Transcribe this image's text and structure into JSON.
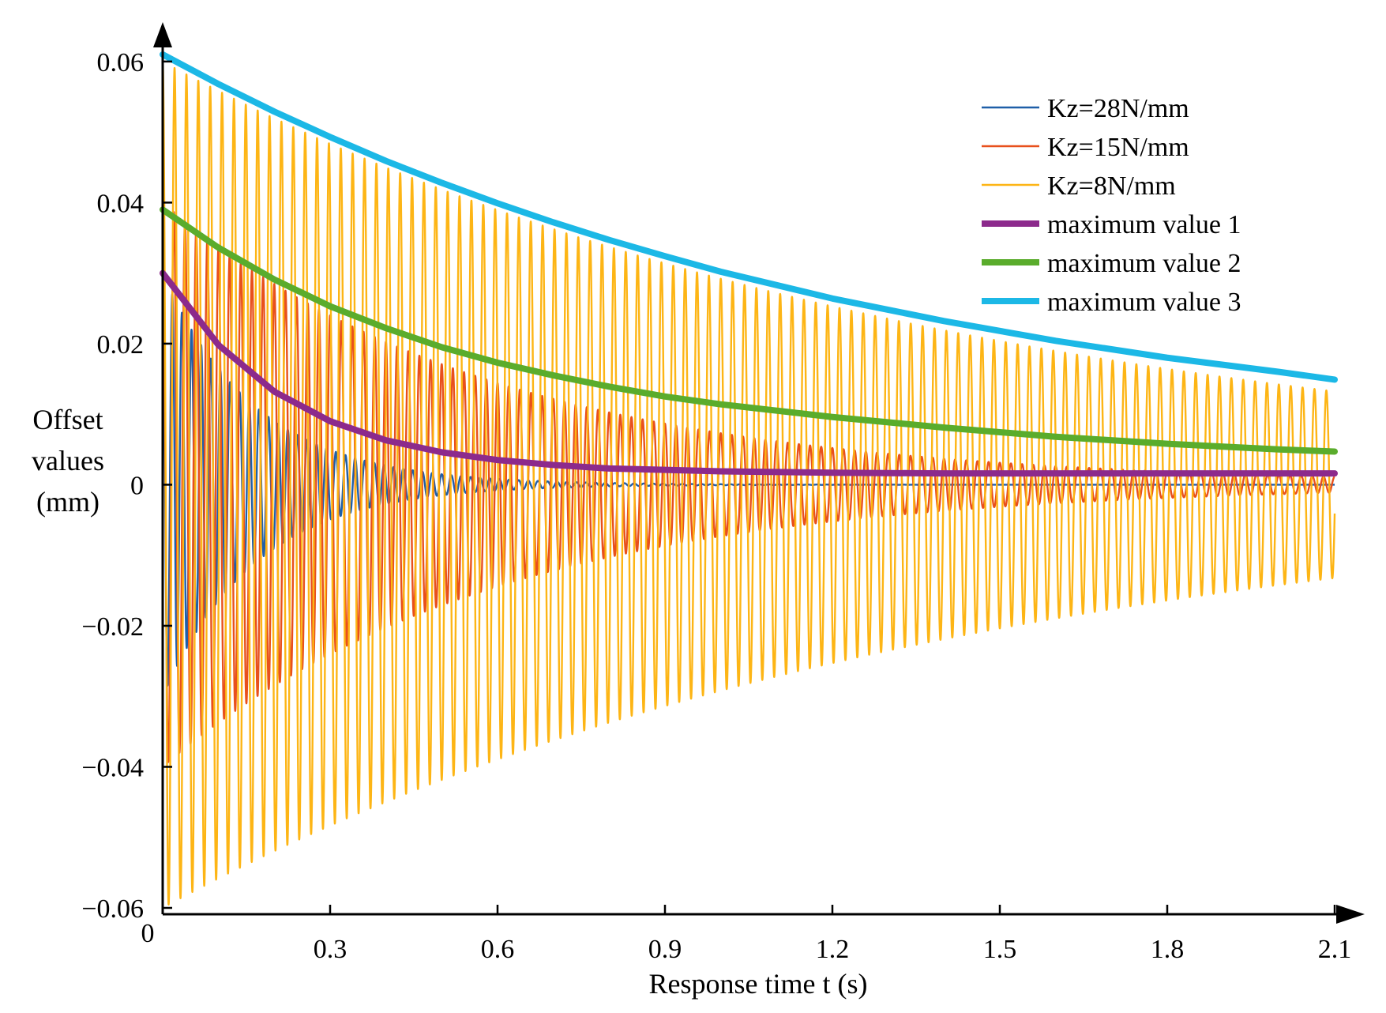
{
  "chart_data": {
    "type": "line",
    "title": "",
    "xlabel": "Response time t (s)",
    "ylabel_lines": [
      "Offset",
      "values",
      "(mm)"
    ],
    "xlim": [
      0,
      2.1
    ],
    "ylim": [
      -0.06,
      0.062
    ],
    "x_ticks": [
      0.3,
      0.6,
      0.9,
      1.2,
      1.5,
      1.8,
      2.1
    ],
    "x_tick_labels": [
      "0.3",
      "0.6",
      "0.9",
      "1.2",
      "1.5",
      "1.8",
      "2.1"
    ],
    "x_origin_label": "0",
    "y_ticks": [
      0.06,
      0.04,
      0.02,
      0,
      -0.02,
      -0.04,
      -0.06
    ],
    "y_tick_labels": [
      "0.06",
      "0.04",
      "0.02",
      "0",
      "−0.02",
      "−0.04",
      "−0.06"
    ],
    "grid": false,
    "legend_position": "top-right",
    "series": [
      {
        "name": "Kz=28N/mm",
        "kind": "oscillation",
        "color": "#1f5fa8",
        "amplitude": 0.03,
        "decay": 6.0,
        "freq_hz": 58,
        "offset": 0.0,
        "x_end": 2.1
      },
      {
        "name": "Kz=15N/mm",
        "kind": "oscillation",
        "color": "#e8501c",
        "amplitude": 0.04,
        "decay": 1.7,
        "freq_hz": 50,
        "offset": 0.0,
        "x_end": 2.1
      },
      {
        "name": "Kz=8N/mm",
        "kind": "oscillation",
        "color": "#fdb515",
        "amplitude": 0.06,
        "decay": 0.72,
        "freq_hz": 47,
        "offset": 0.0,
        "x_end": 2.1
      },
      {
        "name": "maximum value 1",
        "kind": "envelope",
        "color": "#8c2a8c",
        "x": [
          0,
          0.1,
          0.2,
          0.3,
          0.4,
          0.5,
          0.6,
          0.7,
          0.8,
          0.9,
          1.0,
          1.2,
          1.4,
          1.6,
          1.8,
          2.0,
          2.1
        ],
        "y": [
          0.03,
          0.0198,
          0.0132,
          0.009,
          0.0063,
          0.0046,
          0.0035,
          0.0028,
          0.0023,
          0.0021,
          0.0019,
          0.0017,
          0.0016,
          0.0016,
          0.0016,
          0.0016,
          0.0016
        ]
      },
      {
        "name": "maximum value 2",
        "kind": "envelope",
        "color": "#5aac2c",
        "x": [
          0,
          0.1,
          0.2,
          0.3,
          0.4,
          0.5,
          0.6,
          0.7,
          0.8,
          0.9,
          1.0,
          1.2,
          1.4,
          1.6,
          1.8,
          2.0,
          2.1
        ],
        "y": [
          0.039,
          0.0336,
          0.0291,
          0.0253,
          0.0222,
          0.0195,
          0.0173,
          0.0155,
          0.0139,
          0.0125,
          0.0114,
          0.0096,
          0.0081,
          0.0068,
          0.0058,
          0.005,
          0.0047
        ]
      },
      {
        "name": "maximum value 3",
        "kind": "envelope",
        "color": "#1cb8e6",
        "x": [
          0,
          0.1,
          0.2,
          0.3,
          0.4,
          0.5,
          0.6,
          0.7,
          0.8,
          0.9,
          1.0,
          1.2,
          1.4,
          1.6,
          1.8,
          2.0,
          2.1
        ],
        "y": [
          0.061,
          0.0568,
          0.0529,
          0.0493,
          0.0459,
          0.0428,
          0.0399,
          0.0372,
          0.0347,
          0.0324,
          0.0302,
          0.0264,
          0.0232,
          0.0204,
          0.018,
          0.016,
          0.0149
        ]
      }
    ]
  }
}
